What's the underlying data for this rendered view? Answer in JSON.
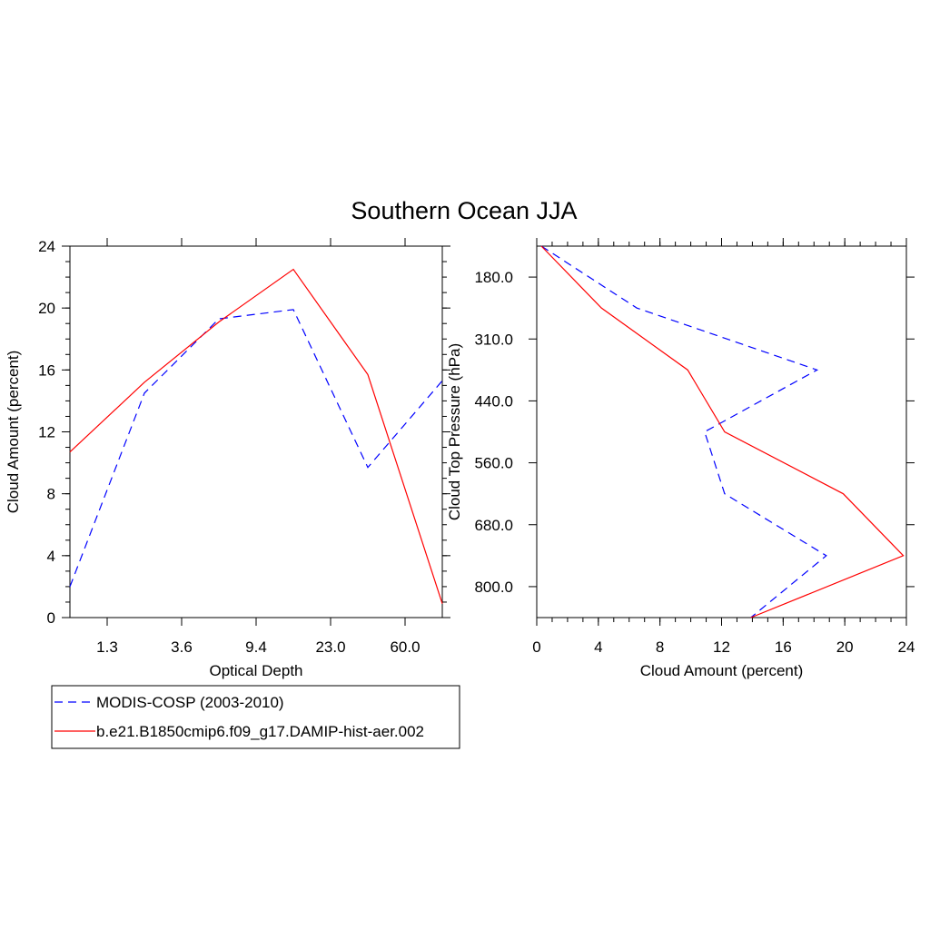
{
  "title": "Southern Ocean JJA",
  "legend": {
    "placement": "bottom-left",
    "entries": [
      {
        "label": "MODIS-COSP (2003-2010)",
        "color": "#0000ff",
        "dash": "dashed"
      },
      {
        "label": "b.e21.B1850cmip6.f09_g17.DAMIP-hist-aer.002",
        "color": "#ff0000",
        "dash": "solid"
      }
    ]
  },
  "chart_data": [
    {
      "type": "line",
      "orientation": "vertical",
      "xlabel": "Optical Depth",
      "ylabel": "Cloud Amount (percent)",
      "x_tick_labels": [
        "1.3",
        "3.6",
        "9.4",
        "23.0",
        "60.0"
      ],
      "y_ticks": [
        0,
        4,
        8,
        12,
        16,
        20,
        24
      ],
      "ylim": [
        0,
        24
      ],
      "series": [
        {
          "name": "MODIS-COSP (2003-2010)",
          "color": "#0000ff",
          "dash": "dashed",
          "values": [
            2.0,
            14.5,
            19.3,
            19.9,
            9.7,
            15.3
          ]
        },
        {
          "name": "b.e21.B1850cmip6.f09_g17.DAMIP-hist-aer.002",
          "color": "#ff0000",
          "dash": "solid",
          "values": [
            10.7,
            15.2,
            19.1,
            22.5,
            15.7,
            0.9
          ]
        }
      ]
    },
    {
      "type": "line",
      "orientation": "horizontal",
      "xlabel": "Cloud Amount (percent)",
      "ylabel": "Cloud Top Pressure (hPa)",
      "y_tick_labels": [
        "180.0",
        "310.0",
        "440.0",
        "560.0",
        "680.0",
        "800.0"
      ],
      "x_ticks": [
        0,
        4,
        8,
        12,
        16,
        20,
        24
      ],
      "xlim": [
        0,
        24
      ],
      "series": [
        {
          "name": "MODIS-COSP (2003-2010)",
          "color": "#0000ff",
          "dash": "dashed",
          "values": [
            0.3,
            6.5,
            18.2,
            10.9,
            12.2,
            18.8,
            13.9
          ]
        },
        {
          "name": "b.e21.B1850cmip6.f09_g17.DAMIP-hist-aer.002",
          "color": "#ff0000",
          "dash": "solid",
          "values": [
            0.3,
            4.2,
            9.8,
            12.2,
            19.9,
            23.8,
            13.9
          ]
        }
      ]
    }
  ]
}
